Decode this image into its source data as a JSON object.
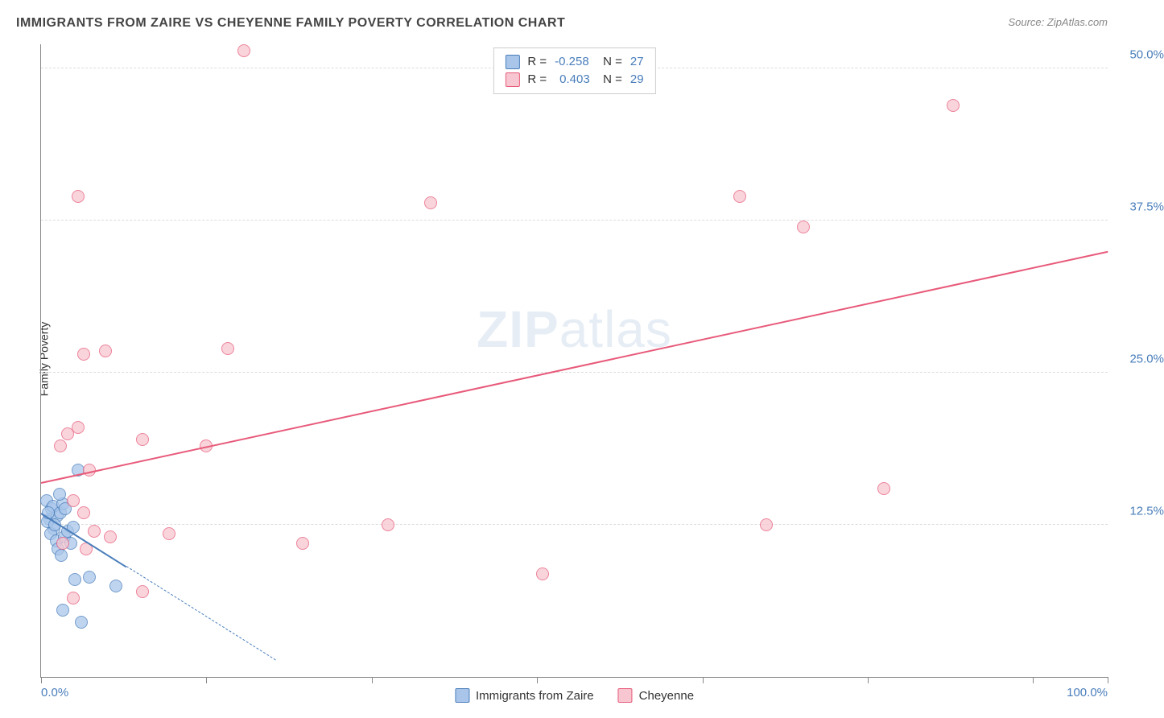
{
  "title": "IMMIGRANTS FROM ZAIRE VS CHEYENNE FAMILY POVERTY CORRELATION CHART",
  "source_label": "Source: ZipAtlas.com",
  "ylabel": "Family Poverty",
  "watermark": {
    "bold": "ZIP",
    "light": "atlas"
  },
  "series": [
    {
      "name": "Immigrants from Zaire",
      "fill": "#a9c6ea",
      "stroke": "#4a7ebb",
      "r_value": "-0.258",
      "n_value": "27",
      "trend": {
        "x1": 0,
        "y1": 13.5,
        "x2": 10,
        "y2": 8.0,
        "solid_to_x": 8,
        "dashed_to_x": 22
      },
      "points": [
        {
          "x": 0.5,
          "y": 14.5
        },
        {
          "x": 0.8,
          "y": 13.0
        },
        {
          "x": 1.0,
          "y": 13.8
        },
        {
          "x": 1.2,
          "y": 12.2
        },
        {
          "x": 0.6,
          "y": 12.8
        },
        {
          "x": 1.5,
          "y": 13.2
        },
        {
          "x": 1.1,
          "y": 14.0
        },
        {
          "x": 0.9,
          "y": 11.8
        },
        {
          "x": 1.3,
          "y": 12.5
        },
        {
          "x": 1.8,
          "y": 13.5
        },
        {
          "x": 2.0,
          "y": 14.2
        },
        {
          "x": 1.4,
          "y": 11.2
        },
        {
          "x": 2.2,
          "y": 11.5
        },
        {
          "x": 2.5,
          "y": 12.0
        },
        {
          "x": 1.6,
          "y": 10.5
        },
        {
          "x": 2.8,
          "y": 11.0
        },
        {
          "x": 3.0,
          "y": 12.3
        },
        {
          "x": 2.3,
          "y": 13.8
        },
        {
          "x": 3.5,
          "y": 17.0
        },
        {
          "x": 3.2,
          "y": 8.0
        },
        {
          "x": 4.5,
          "y": 8.2
        },
        {
          "x": 2.0,
          "y": 5.5
        },
        {
          "x": 3.8,
          "y": 4.5
        },
        {
          "x": 1.7,
          "y": 15.0
        },
        {
          "x": 0.7,
          "y": 13.5
        },
        {
          "x": 7.0,
          "y": 7.5
        },
        {
          "x": 1.9,
          "y": 10.0
        }
      ]
    },
    {
      "name": "Cheyenne",
      "fill": "#f7c6d0",
      "stroke": "#e85a7a",
      "r_value": "0.403",
      "n_value": "29",
      "trend": {
        "x1": 0,
        "y1": 16.0,
        "x2": 100,
        "y2": 35.0
      },
      "points": [
        {
          "x": 19.0,
          "y": 51.5
        },
        {
          "x": 3.5,
          "y": 39.5
        },
        {
          "x": 36.5,
          "y": 39.0
        },
        {
          "x": 65.5,
          "y": 39.5
        },
        {
          "x": 85.5,
          "y": 47.0
        },
        {
          "x": 71.5,
          "y": 37.0
        },
        {
          "x": 4.0,
          "y": 26.5
        },
        {
          "x": 6.0,
          "y": 26.8
        },
        {
          "x": 17.5,
          "y": 27.0
        },
        {
          "x": 2.5,
          "y": 20.0
        },
        {
          "x": 3.5,
          "y": 20.5
        },
        {
          "x": 1.8,
          "y": 19.0
        },
        {
          "x": 9.5,
          "y": 19.5
        },
        {
          "x": 15.5,
          "y": 19.0
        },
        {
          "x": 4.5,
          "y": 17.0
        },
        {
          "x": 68.0,
          "y": 12.5
        },
        {
          "x": 79.0,
          "y": 15.5
        },
        {
          "x": 4.0,
          "y": 13.5
        },
        {
          "x": 5.0,
          "y": 12.0
        },
        {
          "x": 6.5,
          "y": 11.5
        },
        {
          "x": 12.0,
          "y": 11.8
        },
        {
          "x": 32.5,
          "y": 12.5
        },
        {
          "x": 24.5,
          "y": 11.0
        },
        {
          "x": 47.0,
          "y": 8.5
        },
        {
          "x": 9.5,
          "y": 7.0
        },
        {
          "x": 3.0,
          "y": 6.5
        },
        {
          "x": 4.2,
          "y": 10.5
        },
        {
          "x": 2.0,
          "y": 11.0
        },
        {
          "x": 3.0,
          "y": 14.5
        }
      ]
    }
  ],
  "x_axis": {
    "min": 0,
    "max": 100,
    "ticks": [
      0,
      15.5,
      31,
      46.5,
      62,
      77.5,
      93,
      100
    ],
    "labels": [
      {
        "pos": 0,
        "text": "0.0%",
        "align": "left"
      },
      {
        "pos": 100,
        "text": "100.0%",
        "align": "right"
      }
    ]
  },
  "y_axis": {
    "min": 0,
    "max": 52,
    "gridlines": [
      12.5,
      25.0,
      37.5,
      50.0
    ],
    "labels": [
      {
        "pos": 12.5,
        "text": "12.5%"
      },
      {
        "pos": 25.0,
        "text": "25.0%"
      },
      {
        "pos": 37.5,
        "text": "37.5%"
      },
      {
        "pos": 50.0,
        "text": "50.0%"
      }
    ]
  },
  "legend_top": {
    "r_label": "R =",
    "n_label": "N ="
  },
  "marker_size": 16,
  "colors": {
    "tick_text": "#4a7ebb",
    "axis": "#888888",
    "grid": "#dddddd",
    "background": "#ffffff"
  }
}
